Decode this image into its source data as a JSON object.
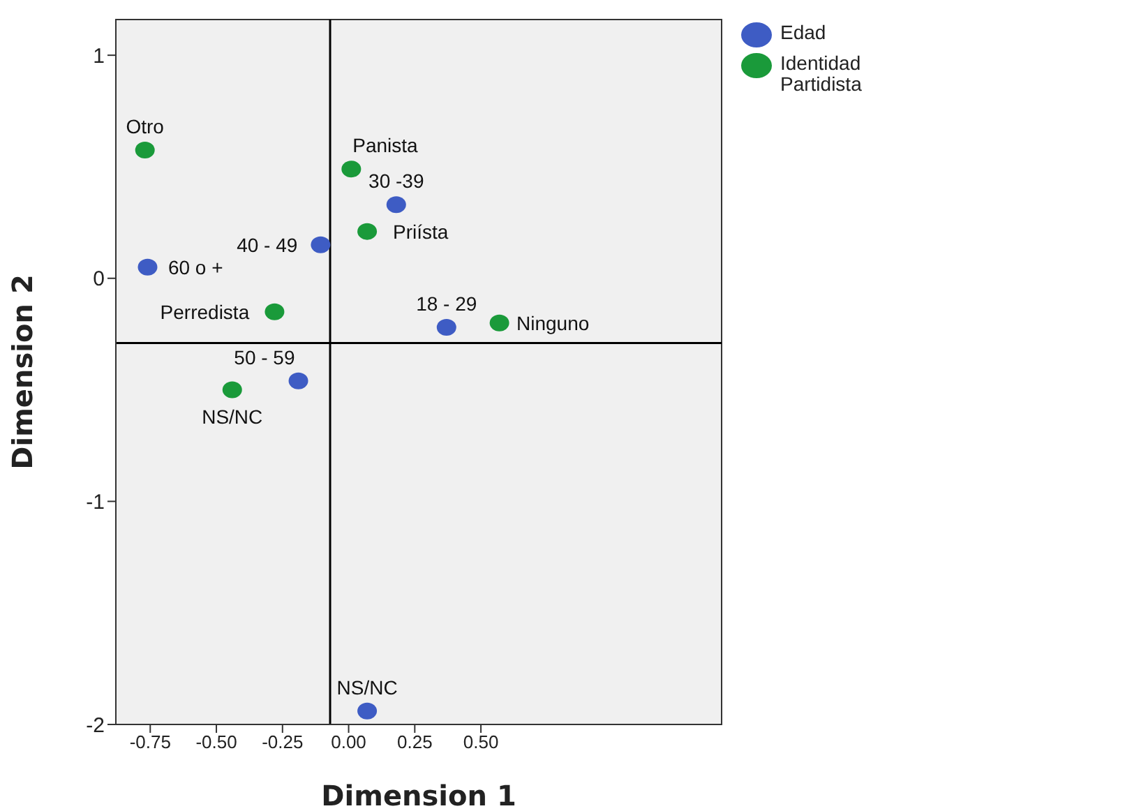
{
  "chart_data": {
    "type": "scatter",
    "xlabel": "Dimension 1",
    "ylabel": "Dimension 2",
    "xlim": [
      -0.88,
      1.41
    ],
    "ylim": [
      -2,
      1.16
    ],
    "xticks": [
      {
        "value": -0.75,
        "label": "-0.75"
      },
      {
        "value": -0.5,
        "label": "-0.50"
      },
      {
        "value": -0.25,
        "label": "-0.25"
      },
      {
        "value": 0,
        "label": "0.00"
      },
      {
        "value": 0.25,
        "label": "0.25"
      },
      {
        "value": 0.5,
        "label": "0.50"
      }
    ],
    "yticks": [
      1,
      0,
      -1,
      -2
    ],
    "series": [
      {
        "name": "Edad",
        "color": "#3e5cc4",
        "x": [
          -0.76,
          -0.106,
          0.18,
          0.37,
          -0.19,
          0.07
        ],
        "values": [
          0.05,
          0.15,
          0.33,
          -0.22,
          -0.46,
          -1.94
        ]
      },
      {
        "name": "Identidad Partidista",
        "color": "#1a9a3a",
        "x": [
          -0.77,
          0.01,
          0.07,
          -0.28,
          0.57,
          -0.44
        ],
        "values": [
          0.575,
          0.49,
          0.21,
          -0.15,
          -0.2,
          -0.5
        ]
      }
    ],
    "annotations": [
      {
        "text": "60 o +",
        "x": -0.76,
        "y": 0.05
      },
      {
        "text": "40 - 49",
        "x": -0.106,
        "y": 0.15
      },
      {
        "text": "30 -39",
        "x": 0.18,
        "y": 0.33
      },
      {
        "text": "18 - 29",
        "x": 0.37,
        "y": -0.22
      },
      {
        "text": "50 - 59",
        "x": -0.19,
        "y": -0.46
      },
      {
        "text": "NS/NC",
        "x": 0.07,
        "y": -1.94
      },
      {
        "text": "Otro",
        "x": -0.77,
        "y": 0.575
      },
      {
        "text": "Panista",
        "x": 0.01,
        "y": 0.49
      },
      {
        "text": "Priísta",
        "x": 0.07,
        "y": 0.21
      },
      {
        "text": "Perredista",
        "x": -0.28,
        "y": -0.15
      },
      {
        "text": "Ninguno",
        "x": 0.57,
        "y": -0.2
      },
      {
        "text": "NS/NC",
        "x": -0.44,
        "y": -0.5
      }
    ],
    "ref_lines": [
      {
        "axis": "x",
        "value": -0.07,
        "color": "#000000"
      },
      {
        "axis": "y",
        "value": -0.29,
        "color": "#000000"
      }
    ],
    "marker": "circle",
    "grid": false,
    "legend": "top right"
  }
}
